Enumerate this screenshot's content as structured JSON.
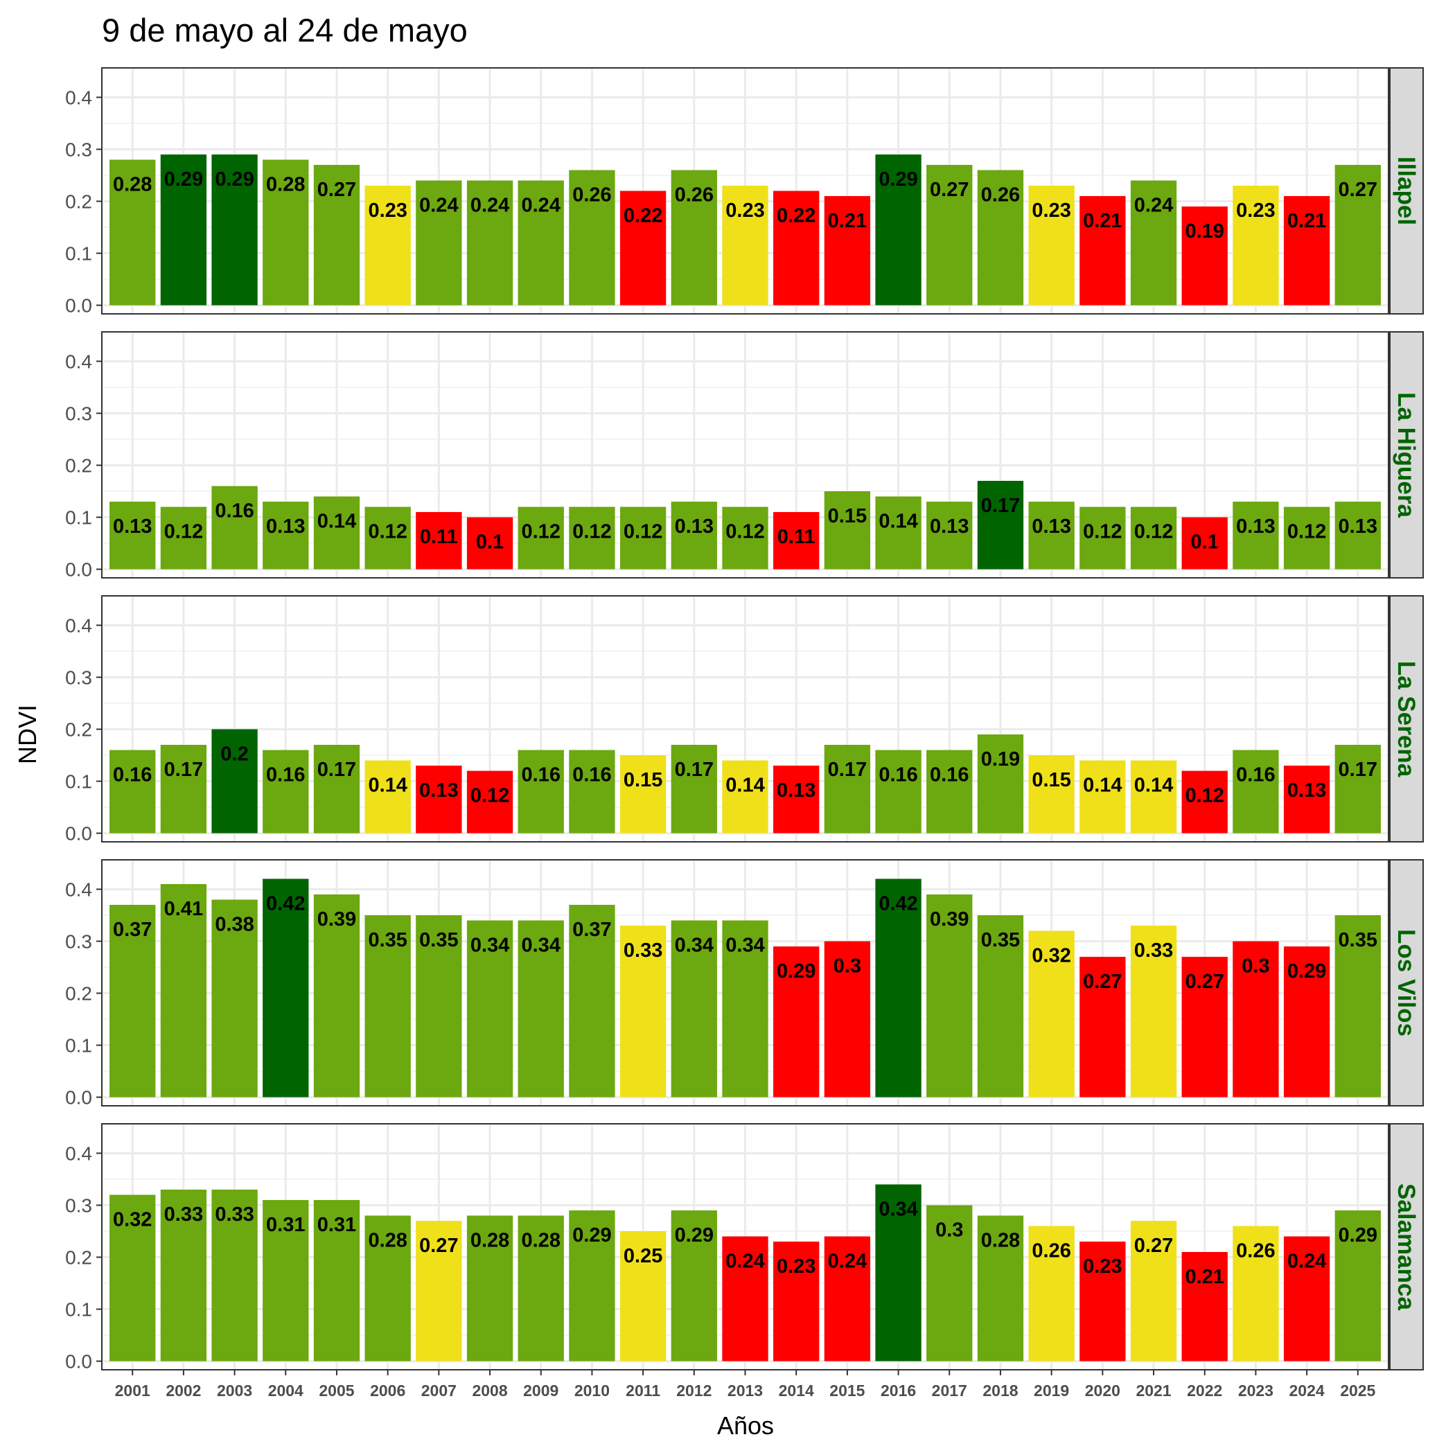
{
  "chart_data": {
    "type": "bar",
    "title": "9 de mayo al 24 de mayo",
    "xlabel": "Años",
    "ylabel": "NDVI",
    "ylim": [
      0,
      0.44
    ],
    "y_ticks": [
      "0.0",
      "0.1",
      "0.2",
      "0.3",
      "0.4"
    ],
    "grid": true,
    "categories": [
      "2001",
      "2002",
      "2003",
      "2004",
      "2005",
      "2006",
      "2007",
      "2008",
      "2009",
      "2010",
      "2011",
      "2012",
      "2013",
      "2014",
      "2015",
      "2016",
      "2017",
      "2018",
      "2019",
      "2020",
      "2021",
      "2022",
      "2023",
      "2024",
      "2025"
    ],
    "colors": {
      "dark_green": "#006400",
      "green": "#6ca80f",
      "yellow": "#f0e01a",
      "red": "#ff0000",
      "strip_text": "#006400",
      "strip_bg": "#d9d9d9"
    },
    "facets": [
      {
        "name": "Illapel",
        "values": [
          0.28,
          0.29,
          0.29,
          0.28,
          0.27,
          0.23,
          0.24,
          0.24,
          0.24,
          0.26,
          0.22,
          0.26,
          0.23,
          0.22,
          0.21,
          0.29,
          0.27,
          0.26,
          0.23,
          0.21,
          0.24,
          0.19,
          0.23,
          0.21,
          0.27
        ],
        "labels": [
          "0.28",
          "0.29",
          "0.29",
          "0.28",
          "0.27",
          "0.23",
          "0.24",
          "0.24",
          "0.24",
          "0.26",
          "0.22",
          "0.26",
          "0.23",
          "0.22",
          "0.21",
          "0.29",
          "0.27",
          "0.26",
          "0.23",
          "0.21",
          "0.24",
          "0.19",
          "0.23",
          "0.21",
          "0.27"
        ],
        "bar_colors": [
          "green",
          "dark_green",
          "dark_green",
          "green",
          "green",
          "yellow",
          "green",
          "green",
          "green",
          "green",
          "red",
          "green",
          "yellow",
          "red",
          "red",
          "dark_green",
          "green",
          "green",
          "yellow",
          "red",
          "green",
          "red",
          "yellow",
          "red",
          "green"
        ]
      },
      {
        "name": "La Higuera",
        "values": [
          0.13,
          0.12,
          0.16,
          0.13,
          0.14,
          0.12,
          0.11,
          0.1,
          0.12,
          0.12,
          0.12,
          0.13,
          0.12,
          0.11,
          0.15,
          0.14,
          0.13,
          0.17,
          0.13,
          0.12,
          0.12,
          0.1,
          0.13,
          0.12,
          0.13
        ],
        "labels": [
          "0.13",
          "0.12",
          "0.16",
          "0.13",
          "0.14",
          "0.12",
          "0.11",
          "0.1",
          "0.12",
          "0.12",
          "0.12",
          "0.13",
          "0.12",
          "0.11",
          "0.15",
          "0.14",
          "0.13",
          "0.17",
          "0.13",
          "0.12",
          "0.12",
          "0.1",
          "0.13",
          "0.12",
          "0.13"
        ],
        "bar_colors": [
          "green",
          "green",
          "green",
          "green",
          "green",
          "green",
          "red",
          "red",
          "green",
          "green",
          "green",
          "green",
          "green",
          "red",
          "green",
          "green",
          "green",
          "dark_green",
          "green",
          "green",
          "green",
          "red",
          "green",
          "green",
          "green"
        ]
      },
      {
        "name": "La Serena",
        "values": [
          0.16,
          0.17,
          0.2,
          0.16,
          0.17,
          0.14,
          0.13,
          0.12,
          0.16,
          0.16,
          0.15,
          0.17,
          0.14,
          0.13,
          0.17,
          0.16,
          0.16,
          0.19,
          0.15,
          0.14,
          0.14,
          0.12,
          0.16,
          0.13,
          0.17
        ],
        "labels": [
          "0.16",
          "0.17",
          "0.2",
          "0.16",
          "0.17",
          "0.14",
          "0.13",
          "0.12",
          "0.16",
          "0.16",
          "0.15",
          "0.17",
          "0.14",
          "0.13",
          "0.17",
          "0.16",
          "0.16",
          "0.19",
          "0.15",
          "0.14",
          "0.14",
          "0.12",
          "0.16",
          "0.13",
          "0.17"
        ],
        "bar_colors": [
          "green",
          "green",
          "dark_green",
          "green",
          "green",
          "yellow",
          "red",
          "red",
          "green",
          "green",
          "yellow",
          "green",
          "yellow",
          "red",
          "green",
          "green",
          "green",
          "green",
          "yellow",
          "yellow",
          "yellow",
          "red",
          "green",
          "red",
          "green"
        ]
      },
      {
        "name": "Los Vilos",
        "values": [
          0.37,
          0.41,
          0.38,
          0.42,
          0.39,
          0.35,
          0.35,
          0.34,
          0.34,
          0.37,
          0.33,
          0.34,
          0.34,
          0.29,
          0.3,
          0.42,
          0.39,
          0.35,
          0.32,
          0.27,
          0.33,
          0.27,
          0.3,
          0.29,
          0.35
        ],
        "labels": [
          "0.37",
          "0.41",
          "0.38",
          "0.42",
          "0.39",
          "0.35",
          "0.35",
          "0.34",
          "0.34",
          "0.37",
          "0.33",
          "0.34",
          "0.34",
          "0.29",
          "0.3",
          "0.42",
          "0.39",
          "0.35",
          "0.32",
          "0.27",
          "0.33",
          "0.27",
          "0.3",
          "0.29",
          "0.35"
        ],
        "bar_colors": [
          "green",
          "green",
          "green",
          "dark_green",
          "green",
          "green",
          "green",
          "green",
          "green",
          "green",
          "yellow",
          "green",
          "green",
          "red",
          "red",
          "dark_green",
          "green",
          "green",
          "yellow",
          "red",
          "yellow",
          "red",
          "red",
          "red",
          "green"
        ]
      },
      {
        "name": "Salamanca",
        "values": [
          0.32,
          0.33,
          0.33,
          0.31,
          0.31,
          0.28,
          0.27,
          0.28,
          0.28,
          0.29,
          0.25,
          0.29,
          0.24,
          0.23,
          0.24,
          0.34,
          0.3,
          0.28,
          0.26,
          0.23,
          0.27,
          0.21,
          0.26,
          0.24,
          0.29
        ],
        "labels": [
          "0.32",
          "0.33",
          "0.33",
          "0.31",
          "0.31",
          "0.28",
          "0.27",
          "0.28",
          "0.28",
          "0.29",
          "0.25",
          "0.29",
          "0.24",
          "0.23",
          "0.24",
          "0.34",
          "0.3",
          "0.28",
          "0.26",
          "0.23",
          "0.27",
          "0.21",
          "0.26",
          "0.24",
          "0.29"
        ],
        "bar_colors": [
          "green",
          "green",
          "green",
          "green",
          "green",
          "green",
          "yellow",
          "green",
          "green",
          "green",
          "yellow",
          "green",
          "red",
          "red",
          "red",
          "dark_green",
          "green",
          "green",
          "yellow",
          "red",
          "yellow",
          "red",
          "yellow",
          "red",
          "green"
        ]
      }
    ]
  }
}
